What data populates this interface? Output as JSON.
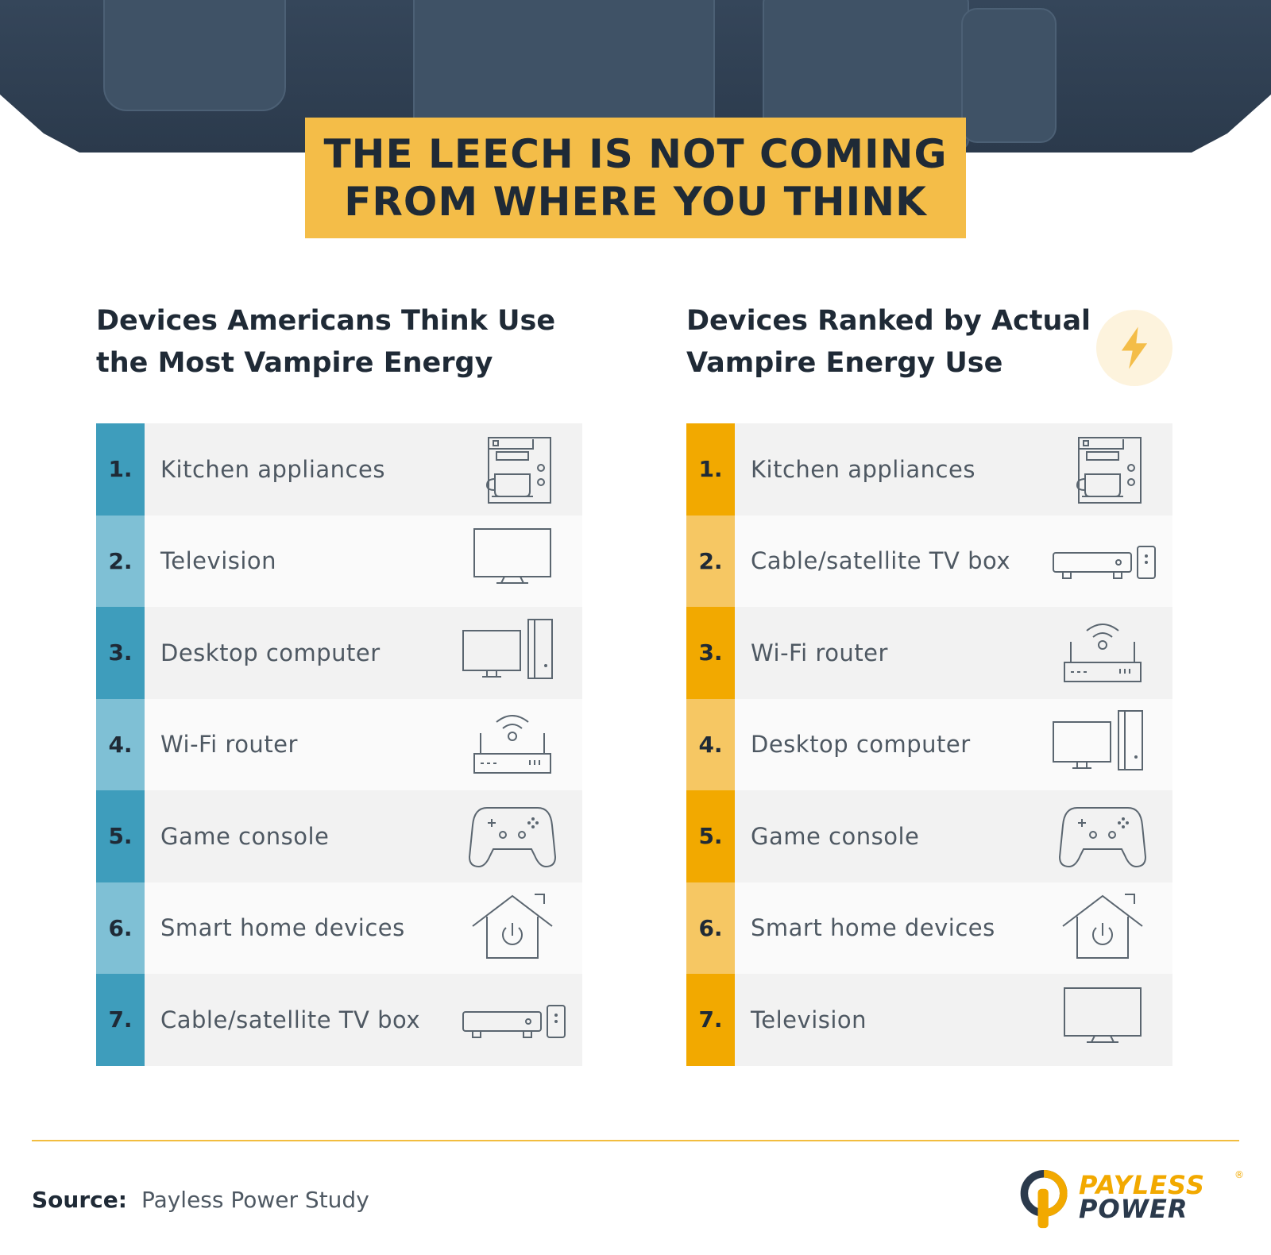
{
  "banner": {
    "line1": "THE LEECH IS NOT COMING",
    "line2": "FROM WHERE YOU THINK"
  },
  "left": {
    "heading_line1": "Devices Americans Think Use",
    "heading_line2": "the Most Vampire Energy",
    "accent": "#3e9dbc",
    "items": [
      {
        "num": "1.",
        "label": "Kitchen appliances",
        "icon": "coffee-maker-icon"
      },
      {
        "num": "2.",
        "label": "Television",
        "icon": "tv-icon"
      },
      {
        "num": "3.",
        "label": "Desktop computer",
        "icon": "desktop-computer-icon"
      },
      {
        "num": "4.",
        "label": "Wi-Fi router",
        "icon": "wifi-router-icon"
      },
      {
        "num": "5.",
        "label": "Game console",
        "icon": "game-controller-icon"
      },
      {
        "num": "6.",
        "label": "Smart home devices",
        "icon": "smart-home-icon"
      },
      {
        "num": "7.",
        "label": "Cable/satellite TV box",
        "icon": "tv-box-icon"
      }
    ]
  },
  "right": {
    "heading_line1": "Devices Ranked by Actual",
    "heading_line2": "Vampire Energy Use",
    "accent": "#f2a900",
    "badge_icon": "lightning-bolt-icon",
    "items": [
      {
        "num": "1.",
        "label": "Kitchen appliances",
        "icon": "coffee-maker-icon"
      },
      {
        "num": "2.",
        "label": "Cable/satellite TV box",
        "icon": "tv-box-icon"
      },
      {
        "num": "3.",
        "label": "Wi-Fi router",
        "icon": "wifi-router-icon"
      },
      {
        "num": "4.",
        "label": "Desktop computer",
        "icon": "desktop-computer-icon"
      },
      {
        "num": "5.",
        "label": "Game console",
        "icon": "game-controller-icon"
      },
      {
        "num": "6.",
        "label": "Smart home devices",
        "icon": "smart-home-icon"
      },
      {
        "num": "7.",
        "label": "Television",
        "icon": "tv-icon"
      }
    ]
  },
  "footer": {
    "source_label": "Source:",
    "source_text": "Payless Power Study",
    "logo_line1": "PAYLESS",
    "logo_line2": "POWER",
    "logo_mark": "®"
  }
}
